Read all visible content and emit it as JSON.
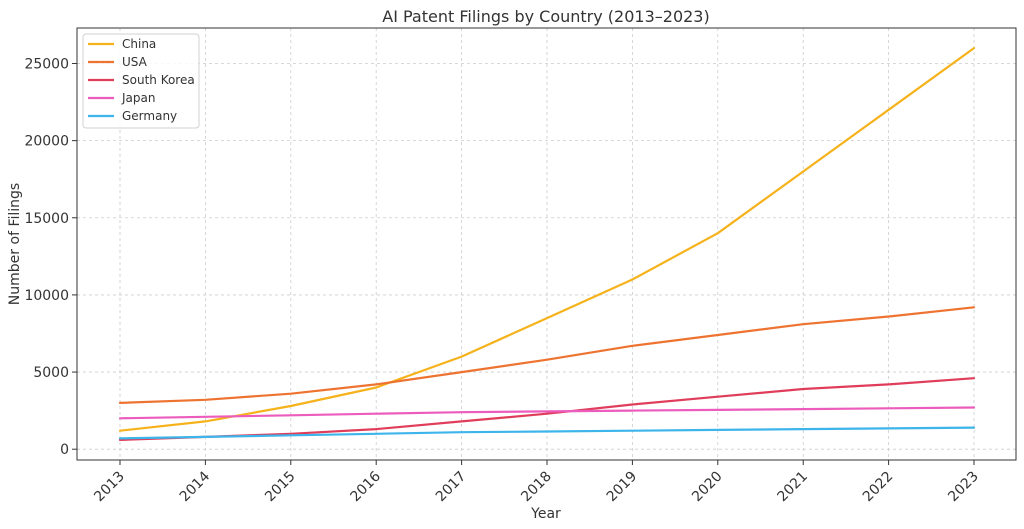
{
  "chart_data": {
    "type": "line",
    "title": "AI Patent Filings by Country (2013–2023)",
    "xlabel": "Year",
    "ylabel": "Number of Filings",
    "x": [
      "2013",
      "2014",
      "2015",
      "2016",
      "2017",
      "2018",
      "2019",
      "2020",
      "2021",
      "2022",
      "2023"
    ],
    "yticks": [
      0,
      5000,
      10000,
      15000,
      20000,
      25000
    ],
    "ylim": [
      -700,
      27300
    ],
    "grid": true,
    "legend_position": "top-left",
    "series": [
      {
        "name": "China",
        "color": "#f5b21b",
        "values": [
          1200,
          1800,
          2800,
          4000,
          6000,
          8500,
          11000,
          14000,
          18000,
          22000,
          26000
        ]
      },
      {
        "name": "USA",
        "color": "#ee7330",
        "values": [
          3000,
          3200,
          3600,
          4200,
          5000,
          5800,
          6700,
          7400,
          8100,
          8600,
          9200
        ]
      },
      {
        "name": "South Korea",
        "color": "#e03d5b",
        "values": [
          600,
          800,
          1000,
          1300,
          1800,
          2300,
          2900,
          3400,
          3900,
          4200,
          4600
        ]
      },
      {
        "name": "Japan",
        "color": "#ec5cbd",
        "values": [
          2000,
          2100,
          2200,
          2300,
          2400,
          2450,
          2500,
          2550,
          2600,
          2650,
          2700
        ]
      },
      {
        "name": "Germany",
        "color": "#3db5ea",
        "values": [
          700,
          800,
          900,
          1000,
          1100,
          1150,
          1200,
          1250,
          1300,
          1350,
          1400
        ]
      }
    ]
  }
}
